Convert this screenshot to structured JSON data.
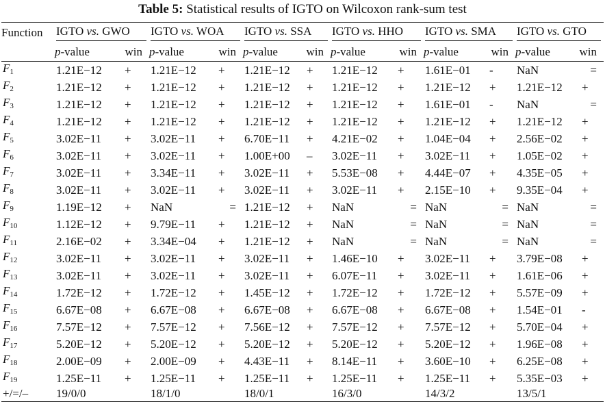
{
  "caption": {
    "label": "Table 5:",
    "text": "Statistical results of IGTO on Wilcoxon rank-sum test"
  },
  "header": {
    "function_label": "Function",
    "comparisons": [
      {
        "a": "IGTO",
        "vs": "vs.",
        "b": "GWO"
      },
      {
        "a": "IGTO",
        "vs": "vs.",
        "b": "WOA"
      },
      {
        "a": "IGTO",
        "vs": "vs.",
        "b": "SSA"
      },
      {
        "a": "IGTO",
        "vs": "vs.",
        "b": "HHO"
      },
      {
        "a": "IGTO",
        "vs": "vs.",
        "b": "SMA"
      },
      {
        "a": "IGTO",
        "vs": "vs.",
        "b": "GTO"
      }
    ],
    "pvalue_p": "p",
    "pvalue_rest": "-value",
    "win_label": "win"
  },
  "rows": [
    {
      "f": "F",
      "sub": "1",
      "cells": [
        [
          "1.21E−12",
          "+"
        ],
        [
          "1.21E−12",
          "+"
        ],
        [
          "1.21E−12",
          "+"
        ],
        [
          "1.21E−12",
          "+"
        ],
        [
          "1.61E−01",
          "-"
        ],
        [
          "NaN",
          "="
        ]
      ]
    },
    {
      "f": "F",
      "sub": "2",
      "cells": [
        [
          "1.21E−12",
          "+"
        ],
        [
          "1.21E−12",
          "+"
        ],
        [
          "1.21E−12",
          "+"
        ],
        [
          "1.21E−12",
          "+"
        ],
        [
          "1.21E−12",
          "+"
        ],
        [
          "1.21E−12",
          "+"
        ]
      ]
    },
    {
      "f": "F",
      "sub": "3",
      "cells": [
        [
          "1.21E−12",
          "+"
        ],
        [
          "1.21E−12",
          "+"
        ],
        [
          "1.21E−12",
          "+"
        ],
        [
          "1.21E−12",
          "+"
        ],
        [
          "1.61E−01",
          "-"
        ],
        [
          "NaN",
          "="
        ]
      ]
    },
    {
      "f": "F",
      "sub": "4",
      "cells": [
        [
          "1.21E−12",
          "+"
        ],
        [
          "1.21E−12",
          "+"
        ],
        [
          "1.21E−12",
          "+"
        ],
        [
          "1.21E−12",
          "+"
        ],
        [
          "1.21E−12",
          "+"
        ],
        [
          "1.21E−12",
          "+"
        ]
      ]
    },
    {
      "f": "F",
      "sub": "5",
      "cells": [
        [
          "3.02E−11",
          "+"
        ],
        [
          "3.02E−11",
          "+"
        ],
        [
          "6.70E−11",
          "+"
        ],
        [
          "4.21E−02",
          "+"
        ],
        [
          "1.04E−04",
          "+"
        ],
        [
          "2.56E−02",
          "+"
        ]
      ]
    },
    {
      "f": "F",
      "sub": "6",
      "cells": [
        [
          "3.02E−11",
          "+"
        ],
        [
          "3.02E−11",
          "+"
        ],
        [
          "1.00E+00",
          "–"
        ],
        [
          "3.02E−11",
          "+"
        ],
        [
          "3.02E−11",
          "+"
        ],
        [
          "1.05E−02",
          "+"
        ]
      ]
    },
    {
      "f": "F",
      "sub": "7",
      "cells": [
        [
          "3.02E−11",
          "+"
        ],
        [
          "3.34E−11",
          "+"
        ],
        [
          "3.02E−11",
          "+"
        ],
        [
          "5.53E−08",
          "+"
        ],
        [
          "4.44E−07",
          "+"
        ],
        [
          "4.35E−05",
          "+"
        ]
      ]
    },
    {
      "f": "F",
      "sub": "8",
      "cells": [
        [
          "3.02E−11",
          "+"
        ],
        [
          "3.02E−11",
          "+"
        ],
        [
          "3.02E−11",
          "+"
        ],
        [
          "3.02E−11",
          "+"
        ],
        [
          "2.15E−10",
          "+"
        ],
        [
          "9.35E−04",
          "+"
        ]
      ]
    },
    {
      "f": "F",
      "sub": "9",
      "cells": [
        [
          "1.19E−12",
          "+"
        ],
        [
          "NaN",
          "="
        ],
        [
          "1.21E−12",
          "+"
        ],
        [
          "NaN",
          "="
        ],
        [
          "NaN",
          "="
        ],
        [
          "NaN",
          "="
        ]
      ]
    },
    {
      "f": "F",
      "sub": "10",
      "cells": [
        [
          "1.12E−12",
          "+"
        ],
        [
          "9.79E−11",
          "+"
        ],
        [
          "1.21E−12",
          "+"
        ],
        [
          "NaN",
          "="
        ],
        [
          "NaN",
          "="
        ],
        [
          "NaN",
          "="
        ]
      ]
    },
    {
      "f": "F",
      "sub": "11",
      "cells": [
        [
          "2.16E−02",
          "+"
        ],
        [
          "3.34E−04",
          "+"
        ],
        [
          "1.21E−12",
          "+"
        ],
        [
          "NaN",
          "="
        ],
        [
          "NaN",
          "="
        ],
        [
          "NaN",
          "="
        ]
      ]
    },
    {
      "f": "F",
      "sub": "12",
      "cells": [
        [
          "3.02E−11",
          "+"
        ],
        [
          "3.02E−11",
          "+"
        ],
        [
          "3.02E−11",
          "+"
        ],
        [
          "1.46E−10",
          "+"
        ],
        [
          "3.02E−11",
          "+"
        ],
        [
          "3.79E−08",
          "+"
        ]
      ]
    },
    {
      "f": "F",
      "sub": "13",
      "cells": [
        [
          "3.02E−11",
          "+"
        ],
        [
          "3.02E−11",
          "+"
        ],
        [
          "3.02E−11",
          "+"
        ],
        [
          "6.07E−11",
          "+"
        ],
        [
          "3.02E−11",
          "+"
        ],
        [
          "1.61E−06",
          "+"
        ]
      ]
    },
    {
      "f": "F",
      "sub": "14",
      "cells": [
        [
          "1.72E−12",
          "+"
        ],
        [
          "1.72E−12",
          "+"
        ],
        [
          "1.45E−12",
          "+"
        ],
        [
          "1.72E−12",
          "+"
        ],
        [
          "1.72E−12",
          "+"
        ],
        [
          "5.57E−09",
          "+"
        ]
      ]
    },
    {
      "f": "F",
      "sub": "15",
      "cells": [
        [
          "6.67E−08",
          "+"
        ],
        [
          "6.67E−08",
          "+"
        ],
        [
          "6.67E−08",
          "+"
        ],
        [
          "6.67E−08",
          "+"
        ],
        [
          "6.67E−08",
          "+"
        ],
        [
          "1.54E−01",
          "-"
        ]
      ]
    },
    {
      "f": "F",
      "sub": "16",
      "cells": [
        [
          "7.57E−12",
          "+"
        ],
        [
          "7.57E−12",
          "+"
        ],
        [
          "7.56E−12",
          "+"
        ],
        [
          "7.57E−12",
          "+"
        ],
        [
          "7.57E−12",
          "+"
        ],
        [
          "5.70E−04",
          "+"
        ]
      ]
    },
    {
      "f": "F",
      "sub": "17",
      "cells": [
        [
          "5.20E−12",
          "+"
        ],
        [
          "5.20E−12",
          "+"
        ],
        [
          "5.20E−12",
          "+"
        ],
        [
          "5.20E−12",
          "+"
        ],
        [
          "5.20E−12",
          "+"
        ],
        [
          "1.96E−08",
          "+"
        ]
      ]
    },
    {
      "f": "F",
      "sub": "18",
      "cells": [
        [
          "2.00E−09",
          "+"
        ],
        [
          "2.00E−09",
          "+"
        ],
        [
          "4.43E−11",
          "+"
        ],
        [
          "8.14E−11",
          "+"
        ],
        [
          "3.60E−10",
          "+"
        ],
        [
          "6.25E−08",
          "+"
        ]
      ]
    },
    {
      "f": "F",
      "sub": "19",
      "cells": [
        [
          "1.25E−11",
          "+"
        ],
        [
          "1.25E−11",
          "+"
        ],
        [
          "1.25E−11",
          "+"
        ],
        [
          "1.25E−11",
          "+"
        ],
        [
          "1.25E−11",
          "+"
        ],
        [
          "5.35E−03",
          "+"
        ]
      ]
    }
  ],
  "summary": {
    "label": "+/=/–",
    "values": [
      "19/0/0",
      "18/1/0",
      "18/0/1",
      "16/3/0",
      "14/3/2",
      "13/5/1"
    ]
  }
}
